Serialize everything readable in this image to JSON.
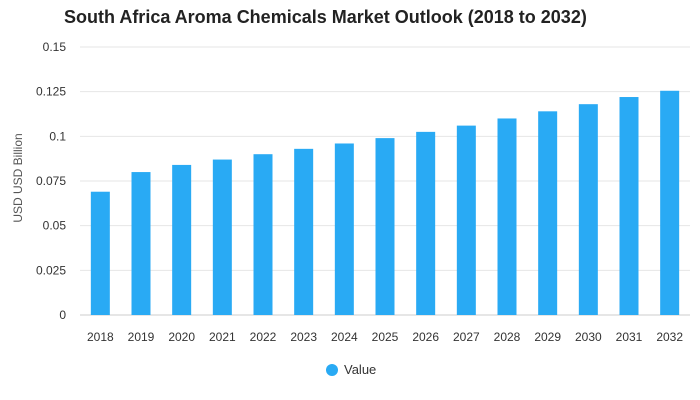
{
  "chart_data": {
    "type": "bar",
    "title": "South Africa Aroma Chemicals Market Outlook (2018 to 2032)",
    "ylabel": "USD USD Billion",
    "xlabel": "",
    "categories": [
      "2018",
      "2019",
      "2020",
      "2021",
      "2022",
      "2023",
      "2024",
      "2025",
      "2026",
      "2027",
      "2028",
      "2029",
      "2030",
      "2031",
      "2032"
    ],
    "series": [
      {
        "name": "Value",
        "values": [
          0.069,
          0.08,
          0.084,
          0.087,
          0.09,
          0.093,
          0.096,
          0.099,
          0.1025,
          0.106,
          0.11,
          0.114,
          0.118,
          0.122,
          0.1255
        ]
      }
    ],
    "ylim": [
      0,
      0.15
    ],
    "yticks": [
      0,
      0.025,
      0.05,
      0.075,
      0.1,
      0.125,
      0.15
    ],
    "ytick_labels": [
      "0",
      "0.025",
      "0.05",
      "0.075",
      "0.1",
      "0.125",
      "0.15"
    ],
    "grid": true,
    "legend_position": "bottom-center",
    "colors": {
      "bar": "#29aaf4",
      "grid": "#e6e6e6",
      "axis": "#cccccc"
    }
  }
}
